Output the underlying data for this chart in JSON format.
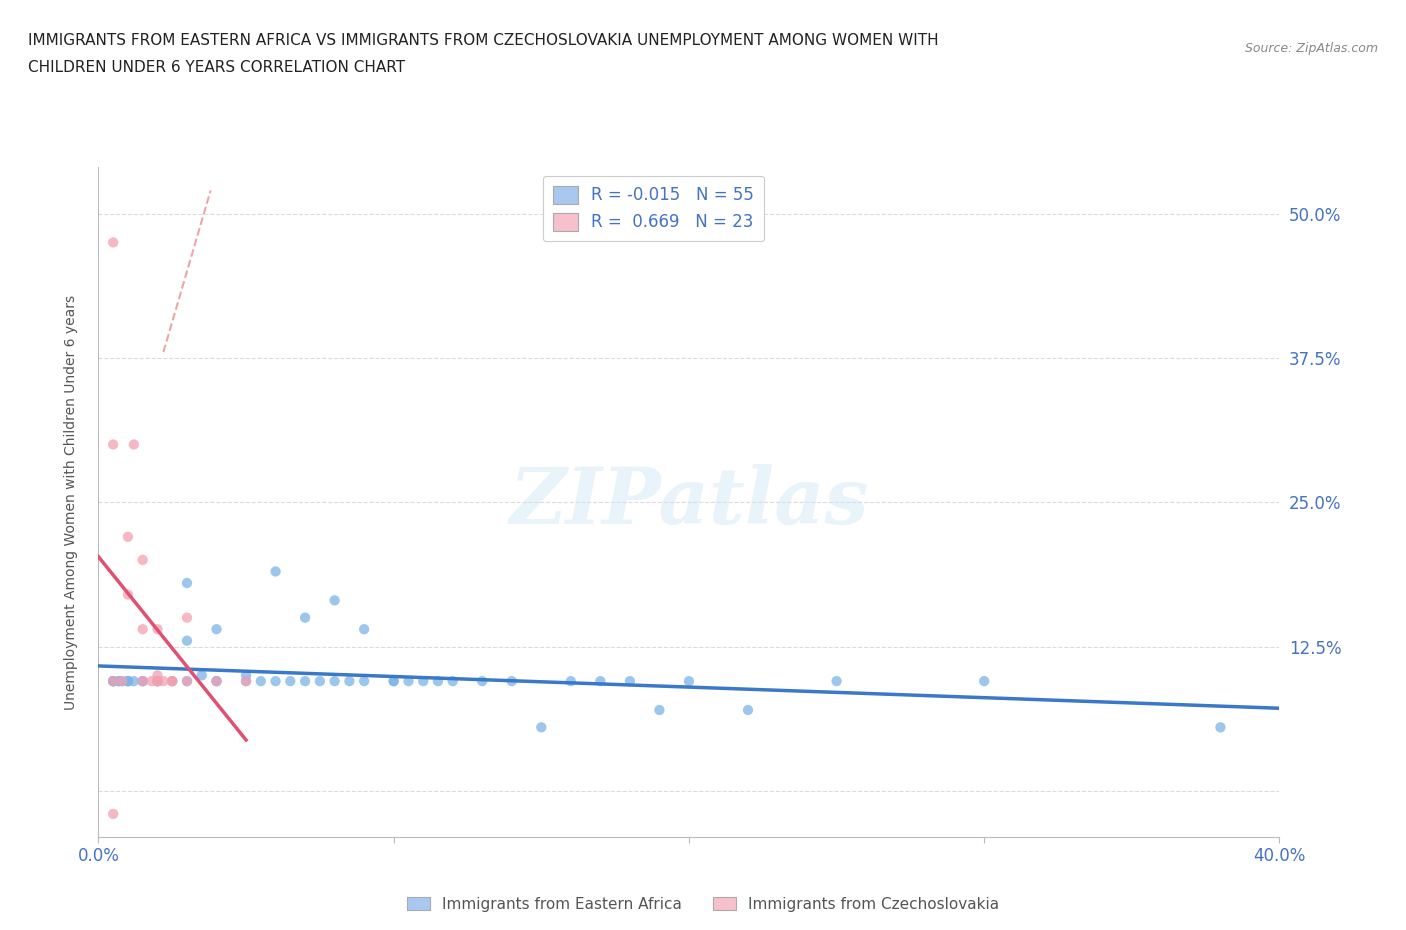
{
  "title_line1": "IMMIGRANTS FROM EASTERN AFRICA VS IMMIGRANTS FROM CZECHOSLOVAKIA UNEMPLOYMENT AMONG WOMEN WITH",
  "title_line2": "CHILDREN UNDER 6 YEARS CORRELATION CHART",
  "source_text": "Source: ZipAtlas.com",
  "ylabel": "Unemployment Among Women with Children Under 6 years",
  "x_min": 0.0,
  "x_max": 0.4,
  "y_min": -0.04,
  "y_max": 0.54,
  "x_ticks": [
    0.0,
    0.1,
    0.2,
    0.3,
    0.4
  ],
  "x_tick_labels": [
    "0.0%",
    "",
    "",
    "",
    "40.0%"
  ],
  "y_ticks": [
    0.0,
    0.125,
    0.25,
    0.375,
    0.5
  ],
  "y_tick_labels_right": [
    "",
    "12.5%",
    "25.0%",
    "37.5%",
    "50.0%"
  ],
  "legend_label1": "Immigrants from Eastern Africa",
  "legend_label2": "Immigrants from Czechoslovakia",
  "r1": -0.015,
  "n1": 55,
  "r2": 0.669,
  "n2": 23,
  "color1": "#7cb4e8",
  "color2": "#f4a0b0",
  "color1_legend": "#a8c8f0",
  "color2_legend": "#f8c0cc",
  "trendline1_color": "#3a78c9",
  "trendline2_color": "#e05070",
  "trendline2_dash_color": "#e89090",
  "watermark": "ZIPatlas",
  "background_color": "#ffffff",
  "scatter1_x": [
    0.005,
    0.005,
    0.005,
    0.005,
    0.007,
    0.007,
    0.008,
    0.01,
    0.01,
    0.01,
    0.012,
    0.015,
    0.015,
    0.02,
    0.02,
    0.025,
    0.03,
    0.03,
    0.03,
    0.035,
    0.04,
    0.04,
    0.04,
    0.05,
    0.05,
    0.055,
    0.06,
    0.06,
    0.065,
    0.07,
    0.07,
    0.075,
    0.08,
    0.08,
    0.085,
    0.09,
    0.09,
    0.1,
    0.1,
    0.105,
    0.11,
    0.115,
    0.12,
    0.13,
    0.14,
    0.15,
    0.16,
    0.17,
    0.18,
    0.19,
    0.2,
    0.22,
    0.25,
    0.3,
    0.38
  ],
  "scatter1_y": [
    0.095,
    0.095,
    0.095,
    0.095,
    0.095,
    0.095,
    0.095,
    0.095,
    0.095,
    0.095,
    0.095,
    0.095,
    0.095,
    0.095,
    0.095,
    0.095,
    0.13,
    0.18,
    0.095,
    0.1,
    0.095,
    0.095,
    0.14,
    0.095,
    0.1,
    0.095,
    0.19,
    0.095,
    0.095,
    0.15,
    0.095,
    0.095,
    0.095,
    0.165,
    0.095,
    0.095,
    0.14,
    0.095,
    0.095,
    0.095,
    0.095,
    0.095,
    0.095,
    0.095,
    0.095,
    0.055,
    0.095,
    0.095,
    0.095,
    0.07,
    0.095,
    0.07,
    0.095,
    0.095,
    0.055
  ],
  "scatter2_x": [
    0.005,
    0.005,
    0.005,
    0.008,
    0.01,
    0.01,
    0.012,
    0.015,
    0.015,
    0.015,
    0.018,
    0.02,
    0.02,
    0.02,
    0.02,
    0.022,
    0.025,
    0.025,
    0.03,
    0.03,
    0.04,
    0.05,
    0.005
  ],
  "scatter2_y": [
    0.475,
    0.3,
    0.095,
    0.095,
    0.22,
    0.17,
    0.3,
    0.2,
    0.14,
    0.095,
    0.095,
    0.14,
    0.1,
    0.095,
    0.095,
    0.095,
    0.095,
    0.095,
    0.095,
    0.15,
    0.095,
    0.095,
    -0.02
  ],
  "trendline1_y_at_0": 0.097,
  "trendline1_y_at_40": 0.095,
  "trendline2_x_solid_start": 0.0,
  "trendline2_x_solid_end": 0.05,
  "trendline2_x_dash_start": 0.0,
  "trendline2_x_dash_end": 0.028,
  "grid_color": "#d8d8d8",
  "grid_style": "--"
}
